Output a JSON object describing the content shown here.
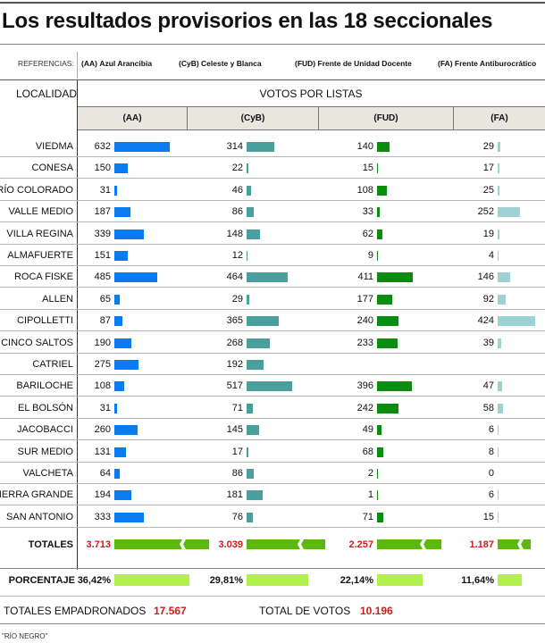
{
  "title": "Los resultados provisorios en las 18 seccionales",
  "references": {
    "label": "REFERENCIAS:",
    "items": [
      {
        "code": "(AA)",
        "name": "Azul Arancibia"
      },
      {
        "code": "(CyB)",
        "name": "Celeste y Blanca"
      },
      {
        "code": "(FUD)",
        "name": "Frente de Unidad Docente"
      },
      {
        "code": "(FA)",
        "name": "Frente Antiburocrático"
      }
    ]
  },
  "table": {
    "locality_header": "LOCALIDAD",
    "votes_header": "VOTOS POR LISTAS",
    "columns": [
      "(AA)",
      "(CyB)",
      "(FUD)",
      "(FA)"
    ],
    "totals_label": "TOTALES",
    "totals": [
      "3.713",
      "3.039",
      "2.257",
      "1.187"
    ],
    "percent_label": "PORCENTAJE",
    "percents": [
      "36,42%",
      "29,81%",
      "22,14%",
      "11,64%"
    ]
  },
  "summary": {
    "registered_label": "TOTALES EMPADRONADOS",
    "registered_value": "17.567",
    "votes_label": "TOTAL DE VOTOS",
    "votes_value": "10.196"
  },
  "source": "\"RÍO NEGRO\"",
  "colors": {
    "AA": "#0a7cf0",
    "CyB": "#4a9e9c",
    "FUD": "#0a8c10",
    "FA": "#9dd2d5",
    "totals_bar": "#5cb80c",
    "percent_bar": "#b2f04c",
    "red": "#c8201c"
  },
  "chart_data": {
    "type": "bar",
    "title": "Los resultados provisorios en las 18 seccionales",
    "xlabel": "VOTOS POR LISTAS",
    "ylabel": "LOCALIDAD",
    "categories": [
      "VIEDMA",
      "CONESA",
      "RÍO COLORADO",
      "VALLE MEDIO",
      "VILLA REGINA",
      "ALMAFUERTE",
      "ROCA FISKE",
      "ALLEN",
      "CIPOLLETTI",
      "CINCO SALTOS",
      "CATRIEL",
      "BARILOCHE",
      "EL BOLSÓN",
      "JACOBACCI",
      "SUR MEDIO",
      "VALCHETA",
      "SIERRA GRANDE",
      "SAN ANTONIO"
    ],
    "series": [
      {
        "name": "(AA)",
        "values": [
          632,
          150,
          31,
          187,
          339,
          151,
          485,
          65,
          87,
          190,
          275,
          108,
          31,
          260,
          131,
          64,
          194,
          333
        ]
      },
      {
        "name": "(CyB)",
        "values": [
          314,
          22,
          46,
          86,
          148,
          12,
          464,
          29,
          365,
          268,
          192,
          517,
          71,
          145,
          17,
          86,
          181,
          76
        ]
      },
      {
        "name": "(FUD)",
        "values": [
          140,
          15,
          108,
          33,
          62,
          9,
          411,
          177,
          240,
          233,
          null,
          396,
          242,
          49,
          68,
          2,
          1,
          71
        ]
      },
      {
        "name": "(FA)",
        "values": [
          29,
          17,
          25,
          252,
          19,
          4,
          146,
          92,
          424,
          39,
          null,
          47,
          58,
          6,
          8,
          0,
          6,
          15
        ]
      }
    ],
    "totals": [
      3713,
      3039,
      2257,
      1187
    ],
    "percents": [
      36.42,
      29.81,
      22.14,
      11.64
    ],
    "grid": false,
    "orientation": "horizontal"
  }
}
